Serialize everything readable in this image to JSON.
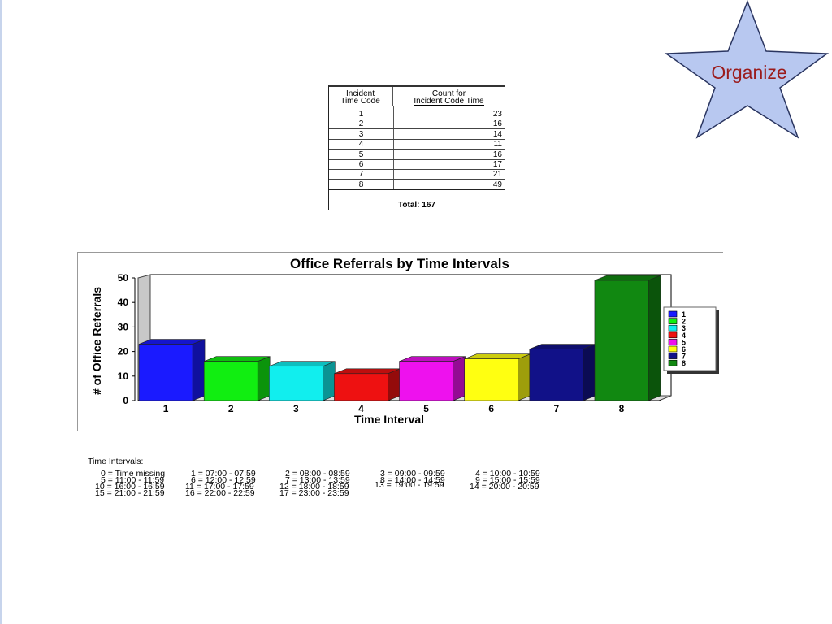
{
  "badge": {
    "label": "Organize",
    "fill": "#b8c8f0",
    "stroke": "#2a3560"
  },
  "table": {
    "col1_header": [
      "Incident",
      "Time Code"
    ],
    "col2_header": [
      "Count for",
      "Incident Code Time"
    ],
    "rows": [
      {
        "code": "1",
        "count": "23"
      },
      {
        "code": "2",
        "count": "16"
      },
      {
        "code": "3",
        "count": "14"
      },
      {
        "code": "4",
        "count": "11"
      },
      {
        "code": "5",
        "count": "16"
      },
      {
        "code": "6",
        "count": "17"
      },
      {
        "code": "7",
        "count": "21"
      },
      {
        "code": "8",
        "count": "49"
      }
    ],
    "total": "Total: 167"
  },
  "chart_data": {
    "type": "bar",
    "title": "Office Referrals by Time Intervals",
    "xlabel": "Time Interval",
    "ylabel": "# of Office Referrals",
    "categories": [
      "1",
      "2",
      "3",
      "4",
      "5",
      "6",
      "7",
      "8"
    ],
    "values": [
      23,
      16,
      14,
      11,
      16,
      17,
      21,
      49
    ],
    "colors": [
      "#1a1aff",
      "#11ee11",
      "#11eeee",
      "#ee1111",
      "#ee11ee",
      "#ffff11",
      "#111188",
      "#118811"
    ],
    "ylim": [
      0,
      50
    ],
    "yticks": [
      "0",
      "10",
      "20",
      "30",
      "40",
      "50"
    ],
    "legend": {
      "position": "right",
      "entries": [
        "1",
        "2",
        "3",
        "4",
        "5",
        "6",
        "7",
        "8"
      ]
    }
  },
  "intervals": {
    "title": "Time Intervals:",
    "items": [
      "0 = Time missing",
      "1 = 07:00 - 07:59",
      "2 = 08:00 - 08:59",
      "3 = 09:00 - 09:59",
      "4 = 10:00 - 10:59",
      "5 = 11:00 - 11:59",
      "6 = 12:00 - 12:59",
      "7 = 13:00 - 13:59",
      "8 = 14:00 - 14:59",
      "9 = 15:00 - 15:59",
      "10 = 16:00 - 16:59",
      "11 = 17:00 - 17:59",
      "12 = 18:00 - 18:59",
      "13 = 19:00 - 19:59",
      "14 = 20:00 - 20:59",
      "15 = 21:00 - 21:59",
      "16 = 22:00 - 22:59",
      "17 = 23:00 - 23:59"
    ]
  }
}
